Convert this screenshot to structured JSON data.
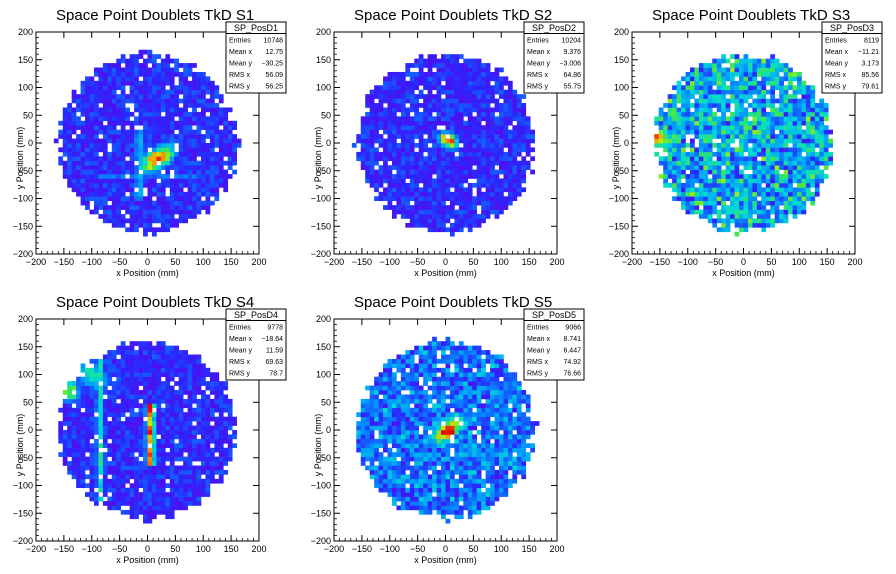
{
  "chart_data": [
    {
      "type": "heatmap",
      "title": "Space Point Doublets TkD S1",
      "xlabel": "x Position (mm)",
      "ylabel": "y Position (mm)",
      "xlim": [
        -200,
        200
      ],
      "ylim": [
        -200,
        200
      ],
      "xticks": [
        "−200",
        "−150",
        "−100",
        "−50",
        "0",
        "50",
        "100",
        "150",
        "200"
      ],
      "yticks": [
        "−200",
        "−150",
        "−100",
        "−50",
        "0",
        "50",
        "100",
        "150",
        "200"
      ],
      "stats": {
        "name": "SP_PosD1",
        "rows": [
          {
            "label": "Entries",
            "value": "10748"
          },
          {
            "label": "Mean x",
            "value": "12.75"
          },
          {
            "label": "Mean y",
            "value": "−30.25"
          },
          {
            "label": "RMS x",
            "value": "56.09"
          },
          {
            "label": "RMS y",
            "value": "56.25"
          }
        ]
      },
      "radius_mm": 160,
      "features": [
        {
          "kind": "band",
          "x": 18,
          "y": -28,
          "angle_deg": 35,
          "len_mm": 90,
          "width_mm": 14,
          "peak": 1.0
        },
        {
          "kind": "vline",
          "x": -15,
          "y": -40,
          "len_mm": 120,
          "peak": 0.45
        },
        {
          "kind": "hline",
          "x": 0,
          "y": -60,
          "len_mm": 180,
          "peak": 0.3
        }
      ]
    },
    {
      "type": "heatmap",
      "title": "Space Point Doublets TkD S2",
      "xlabel": "x Position (mm)",
      "ylabel": "y Position (mm)",
      "xlim": [
        -200,
        200
      ],
      "ylim": [
        -200,
        200
      ],
      "xticks": [
        "−200",
        "−150",
        "−100",
        "−50",
        "0",
        "50",
        "100",
        "150",
        "200"
      ],
      "yticks": [
        "−200",
        "−150",
        "−100",
        "−50",
        "0",
        "50",
        "100",
        "150",
        "200"
      ],
      "stats": {
        "name": "SP_PosD2",
        "rows": [
          {
            "label": "Entries",
            "value": "10204"
          },
          {
            "label": "Mean x",
            "value": "9.376"
          },
          {
            "label": "Mean y",
            "value": "−3.006"
          },
          {
            "label": "RMS x",
            "value": "64.86"
          },
          {
            "label": "RMS y",
            "value": "55.75"
          }
        ]
      },
      "radius_mm": 160,
      "features": [
        {
          "kind": "band",
          "x": 5,
          "y": 5,
          "angle_deg": -30,
          "len_mm": 45,
          "width_mm": 10,
          "peak": 1.0
        }
      ]
    },
    {
      "type": "heatmap",
      "title": "Space Point Doublets TkD S3",
      "xlabel": "x Position (mm)",
      "ylabel": "y Position (mm)",
      "xlim": [
        -200,
        200
      ],
      "ylim": [
        -200,
        200
      ],
      "xticks": [
        "−200",
        "−150",
        "−100",
        "−50",
        "0",
        "50",
        "100",
        "150",
        "200"
      ],
      "yticks": [
        "−200",
        "−150",
        "−100",
        "−50",
        "0",
        "50",
        "100",
        "150",
        "200"
      ],
      "stats": {
        "name": "SP_PosD3",
        "rows": [
          {
            "label": "Entries",
            "value": "8119"
          },
          {
            "label": "Mean x",
            "value": "−11.21"
          },
          {
            "label": "Mean y",
            "value": "3.173"
          },
          {
            "label": "RMS x",
            "value": "85.56"
          },
          {
            "label": "RMS y",
            "value": "79.61"
          }
        ]
      },
      "radius_mm": 160,
      "features": [
        {
          "kind": "uniform",
          "peak": 0.45
        },
        {
          "kind": "spot",
          "x": -150,
          "y": 10,
          "size_mm": 14,
          "peak": 1.0
        },
        {
          "kind": "band",
          "x": -20,
          "y": 0,
          "angle_deg": 20,
          "len_mm": 120,
          "width_mm": 10,
          "peak": 0.55
        }
      ]
    },
    {
      "type": "heatmap",
      "title": "Space Point Doublets TkD S4",
      "xlabel": "x Position (mm)",
      "ylabel": "y Position (mm)",
      "xlim": [
        -200,
        200
      ],
      "ylim": [
        -200,
        200
      ],
      "xticks": [
        "−200",
        "−150",
        "−100",
        "−50",
        "0",
        "50",
        "100",
        "150",
        "200"
      ],
      "yticks": [
        "−200",
        "−150",
        "−100",
        "−50",
        "0",
        "50",
        "100",
        "150",
        "200"
      ],
      "stats": {
        "name": "SP_PosD4",
        "rows": [
          {
            "label": "Entries",
            "value": "9778"
          },
          {
            "label": "Mean x",
            "value": "−18.64"
          },
          {
            "label": "Mean y",
            "value": "11.59"
          },
          {
            "label": "RMS x",
            "value": "69.63"
          },
          {
            "label": "RMS y",
            "value": "78.7"
          }
        ]
      },
      "radius_mm": 160,
      "features": [
        {
          "kind": "vline",
          "x": 5,
          "y": -10,
          "len_mm": 110,
          "peak": 1.0
        },
        {
          "kind": "vline",
          "x": -85,
          "y": 0,
          "len_mm": 260,
          "peak": 0.55
        },
        {
          "kind": "band",
          "x": -100,
          "y": 100,
          "angle_deg": -40,
          "len_mm": 90,
          "width_mm": 18,
          "peak": 0.6
        },
        {
          "kind": "spot",
          "x": -140,
          "y": 70,
          "size_mm": 14,
          "peak": 0.8
        }
      ]
    },
    {
      "type": "heatmap",
      "title": "Space Point Doublets TkD S5",
      "xlabel": "x Position (mm)",
      "ylabel": "y Position (mm)",
      "xlim": [
        -200,
        200
      ],
      "ylim": [
        -200,
        200
      ],
      "xticks": [
        "−200",
        "−150",
        "−100",
        "−50",
        "0",
        "50",
        "100",
        "150",
        "200"
      ],
      "yticks": [
        "−200",
        "−150",
        "−100",
        "−50",
        "0",
        "50",
        "100",
        "150",
        "200"
      ],
      "stats": {
        "name": "SP_PosD5",
        "rows": [
          {
            "label": "Entries",
            "value": "9066"
          },
          {
            "label": "Mean x",
            "value": "8.741"
          },
          {
            "label": "Mean y",
            "value": "6.447"
          },
          {
            "label": "RMS x",
            "value": "74.92"
          },
          {
            "label": "RMS y",
            "value": "76.66"
          }
        ]
      },
      "radius_mm": 160,
      "features": [
        {
          "kind": "band",
          "x": 5,
          "y": 0,
          "angle_deg": 40,
          "len_mm": 70,
          "width_mm": 12,
          "peak": 1.0
        },
        {
          "kind": "uniform",
          "peak": 0.25
        }
      ]
    }
  ]
}
